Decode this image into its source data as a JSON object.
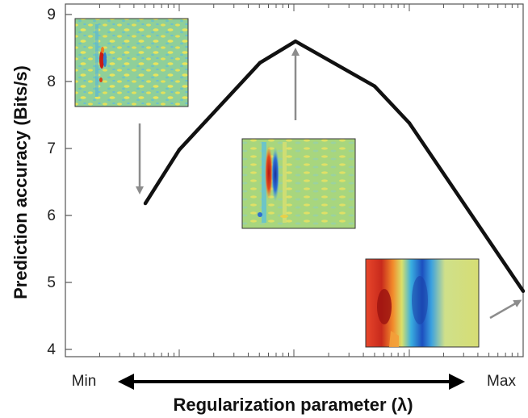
{
  "chart_data": {
    "type": "line",
    "title": "",
    "xlabel": "Regularization parameter (λ)",
    "ylabel": "Prediction accuracy (Bits/s)",
    "x_scale": "log",
    "x_min_label": "Min",
    "x_max_label": "Max",
    "ylim": [
      4,
      9
    ],
    "yticks": [
      4,
      5,
      6,
      7,
      8,
      9
    ],
    "grid": false,
    "series": [
      {
        "color": "#111111",
        "points": [
          {
            "y": 6.18
          },
          {
            "y": 6.98
          },
          {
            "y": 8.28
          },
          {
            "y": 8.6
          },
          {
            "y": 7.93
          },
          {
            "y": 7.38
          },
          {
            "y": 4.87
          }
        ]
      }
    ],
    "insets": [
      {
        "name": "inset-min-lambda",
        "description_icon": "noisy-receptive-field"
      },
      {
        "name": "inset-optimal-lambda",
        "description_icon": "tuned-receptive-field"
      },
      {
        "name": "inset-max-lambda",
        "description_icon": "smooth-receptive-field"
      }
    ],
    "arrow_color": "#8c8c8c"
  }
}
